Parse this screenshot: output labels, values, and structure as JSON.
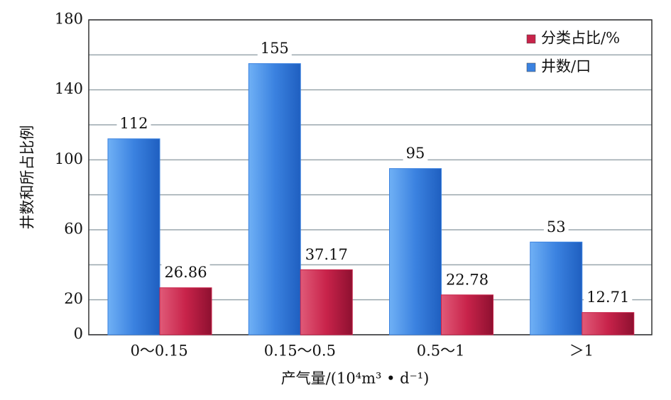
{
  "chart_data": {
    "type": "bar",
    "x_label": "产气量/(10⁴m³ • d⁻¹)",
    "y_label": "井数和所占比例",
    "categories": [
      "0～0.15",
      "0.15～0.5",
      "0.5～1",
      "＞1"
    ],
    "series": [
      {
        "name": "井数/口",
        "color": "#3b82e0",
        "values": [
          112,
          155,
          95,
          53
        ]
      },
      {
        "name": "分类占比/%",
        "color": "#c8234a",
        "values": [
          26.86,
          37.17,
          22.78,
          12.71
        ]
      }
    ],
    "ylim": [
      0,
      180
    ],
    "yticks": [
      0,
      20,
      60,
      100,
      140,
      180
    ],
    "minor_yticks": [
      40,
      80,
      120,
      160
    ],
    "grid": true,
    "legend": "top-right"
  }
}
